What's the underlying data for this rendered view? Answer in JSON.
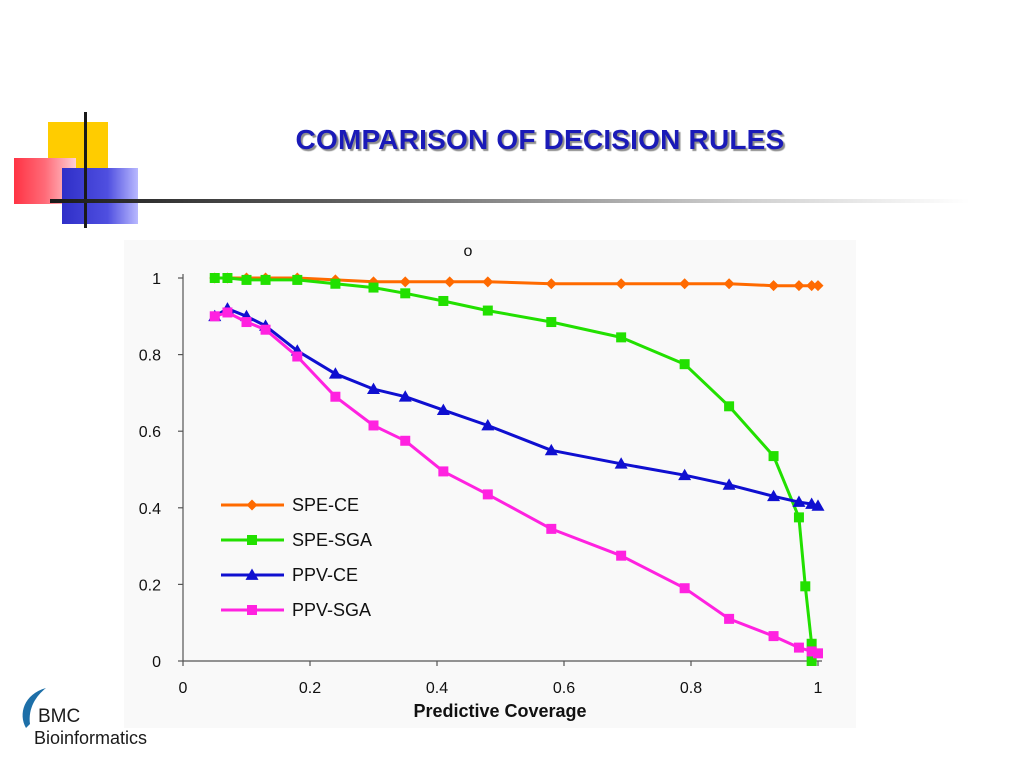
{
  "slide": {
    "title": "COMPARISON OF  DECISION RULES",
    "title_color": "#1a1ab8"
  },
  "logo": {
    "line1": "BMC",
    "line2": "Bioinformatics",
    "arc_color": "#1d6fa8"
  },
  "chart_data": {
    "type": "line",
    "title": "o",
    "xlabel": "Predictive Coverage",
    "ylabel": "",
    "xlim": [
      0,
      1
    ],
    "ylim": [
      0,
      1
    ],
    "x_ticks": [
      "0",
      "0.2",
      "0.4",
      "0.6",
      "0.8",
      "1"
    ],
    "y_ticks": [
      "0",
      "0.2",
      "0.4",
      "0.6",
      "0.8",
      "1"
    ],
    "grid": false,
    "legend_position": "bottom-left",
    "series": [
      {
        "name": "SPE-CE",
        "color": "#ff6a00",
        "marker": "diamond",
        "x": [
          0.05,
          0.07,
          0.1,
          0.13,
          0.18,
          0.24,
          0.3,
          0.35,
          0.42,
          0.48,
          0.58,
          0.69,
          0.79,
          0.86,
          0.93,
          0.97,
          0.99,
          1.0
        ],
        "y": [
          1.0,
          1.0,
          1.0,
          1.0,
          1.0,
          0.995,
          0.99,
          0.99,
          0.99,
          0.99,
          0.985,
          0.985,
          0.985,
          0.985,
          0.98,
          0.98,
          0.98,
          0.98
        ]
      },
      {
        "name": "SPE-SGA",
        "color": "#22e000",
        "marker": "square",
        "x": [
          0.05,
          0.07,
          0.1,
          0.13,
          0.18,
          0.24,
          0.3,
          0.35,
          0.41,
          0.48,
          0.58,
          0.69,
          0.79,
          0.86,
          0.93,
          0.97,
          0.98,
          0.99,
          0.99
        ],
        "y": [
          1.0,
          1.0,
          0.995,
          0.995,
          0.995,
          0.985,
          0.975,
          0.96,
          0.94,
          0.915,
          0.885,
          0.845,
          0.775,
          0.665,
          0.535,
          0.375,
          0.195,
          0.045,
          0.0
        ]
      },
      {
        "name": "PPV-CE",
        "color": "#0f0fd0",
        "marker": "triangle",
        "x": [
          0.05,
          0.07,
          0.1,
          0.13,
          0.18,
          0.24,
          0.3,
          0.35,
          0.41,
          0.48,
          0.58,
          0.69,
          0.79,
          0.86,
          0.93,
          0.97,
          0.99,
          1.0
        ],
        "y": [
          0.9,
          0.92,
          0.9,
          0.875,
          0.81,
          0.75,
          0.71,
          0.69,
          0.655,
          0.615,
          0.55,
          0.515,
          0.485,
          0.46,
          0.43,
          0.415,
          0.41,
          0.405
        ]
      },
      {
        "name": "PPV-SGA",
        "color": "#ff22e0",
        "marker": "square",
        "x": [
          0.05,
          0.07,
          0.1,
          0.13,
          0.18,
          0.24,
          0.3,
          0.35,
          0.41,
          0.48,
          0.58,
          0.69,
          0.79,
          0.86,
          0.93,
          0.97,
          0.99,
          1.0
        ],
        "y": [
          0.9,
          0.91,
          0.885,
          0.865,
          0.795,
          0.69,
          0.615,
          0.575,
          0.495,
          0.435,
          0.345,
          0.275,
          0.19,
          0.11,
          0.065,
          0.035,
          0.025,
          0.02
        ]
      }
    ]
  }
}
